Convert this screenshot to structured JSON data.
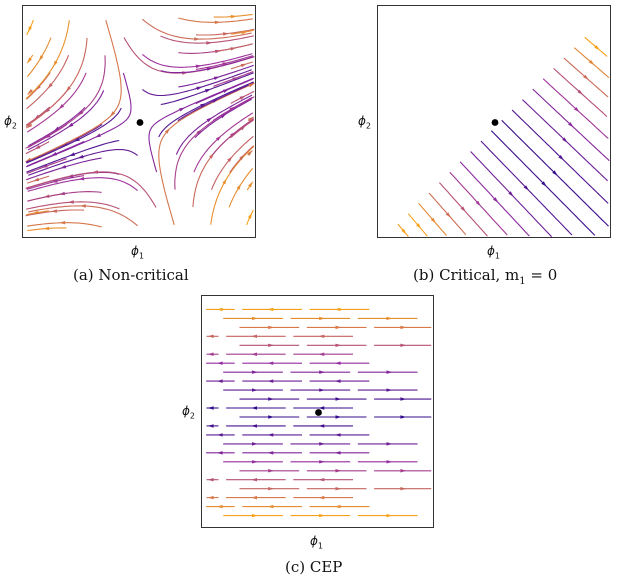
{
  "panels": [
    {
      "id": "a",
      "caption": "(a) Non-critical",
      "xlabel_base": "ϕ",
      "xlabel_sub": "1",
      "ylabel_base": "ϕ",
      "ylabel_sub": "2",
      "field": "saddle"
    },
    {
      "id": "b",
      "caption": "(b) Critical, m",
      "caption_sub": "1",
      "caption_tail": " = 0",
      "xlabel_base": "ϕ",
      "xlabel_sub": "1",
      "ylabel_base": "ϕ",
      "ylabel_sub": "2",
      "field": "diagonal"
    },
    {
      "id": "c",
      "caption": "(c) CEP",
      "xlabel_base": "ϕ",
      "xlabel_sub": "1",
      "ylabel_base": "ϕ",
      "ylabel_sub": "2",
      "field": "horizontal"
    }
  ],
  "colors": {
    "inner": "#2a0a8a",
    "mid": "#9a2ea0",
    "outer": "#f7a11a",
    "fixed_point": "#000000"
  }
}
